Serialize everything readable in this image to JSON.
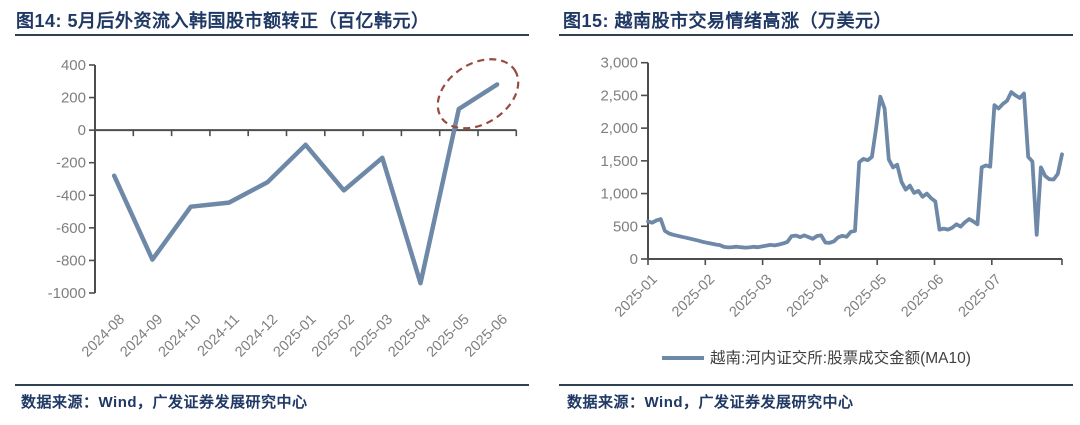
{
  "colors": {
    "title_navy": "#1F3864",
    "rule": "#2F4050",
    "axis": "#4D4D4D",
    "tick_label": "#7F7F7F",
    "series_blue": "#6E88A7",
    "ellipse_red": "#994A40",
    "legend_text": "#404040"
  },
  "chart_data": [
    {
      "id": "figure14",
      "type": "line",
      "title": "图14:  5月后外资流入韩国股市额转正（百亿韩元）",
      "categories": [
        "2024-08",
        "2024-09",
        "2024-10",
        "2024-11",
        "2024-12",
        "2025-01",
        "2025-02",
        "2025-03",
        "2025-04",
        "2025-05",
        "2025-06"
      ],
      "values": [
        -280,
        -795,
        -470,
        -445,
        -320,
        -90,
        -370,
        -170,
        -940,
        130,
        280
      ],
      "ylim": [
        -1000,
        400
      ],
      "ytick_step": 200,
      "ytick_comma": false,
      "grid": false,
      "legend_position": "none",
      "annotation": {
        "shape": "dashed-ellipse",
        "highlights": [
          "2025-05",
          "2025-06"
        ]
      },
      "source": "数据来源：Wind，广发证券发展研究中心"
    },
    {
      "id": "figure15",
      "type": "line",
      "title": "图15:  越南股市交易情绪高涨（万美元）",
      "x_ticks": [
        "2025-01",
        "2025-02",
        "2025-03",
        "2025-04",
        "2025-05",
        "2025-06",
        "2025-07"
      ],
      "x_range_note": "daily MA10 series, 2025-01 through late 2025-07",
      "values": [
        575,
        555,
        590,
        610,
        430,
        390,
        370,
        355,
        340,
        325,
        310,
        295,
        280,
        262,
        248,
        235,
        222,
        212,
        185,
        178,
        182,
        188,
        180,
        174,
        178,
        186,
        180,
        192,
        205,
        215,
        208,
        222,
        238,
        262,
        350,
        358,
        335,
        360,
        335,
        308,
        352,
        360,
        250,
        248,
        270,
        330,
        355,
        340,
        415,
        430,
        1480,
        1530,
        1510,
        1560,
        2000,
        2480,
        2300,
        1520,
        1400,
        1440,
        1180,
        1060,
        1120,
        1010,
        1040,
        950,
        1000,
        930,
        880,
        450,
        465,
        450,
        478,
        530,
        495,
        560,
        610,
        575,
        530,
        1400,
        1430,
        1410,
        2350,
        2300,
        2370,
        2420,
        2550,
        2500,
        2460,
        2530,
        1560,
        1490,
        370,
        1400,
        1270,
        1220,
        1215,
        1300,
        1600
      ],
      "ylim": [
        0,
        3000
      ],
      "ytick_step": 500,
      "ytick_comma": true,
      "grid": false,
      "legend": [
        "越南:河内证交所:股票成交金额(MA10)"
      ],
      "legend_position": "bottom",
      "source": "数据来源：Wind，广发证券发展研究中心"
    }
  ]
}
